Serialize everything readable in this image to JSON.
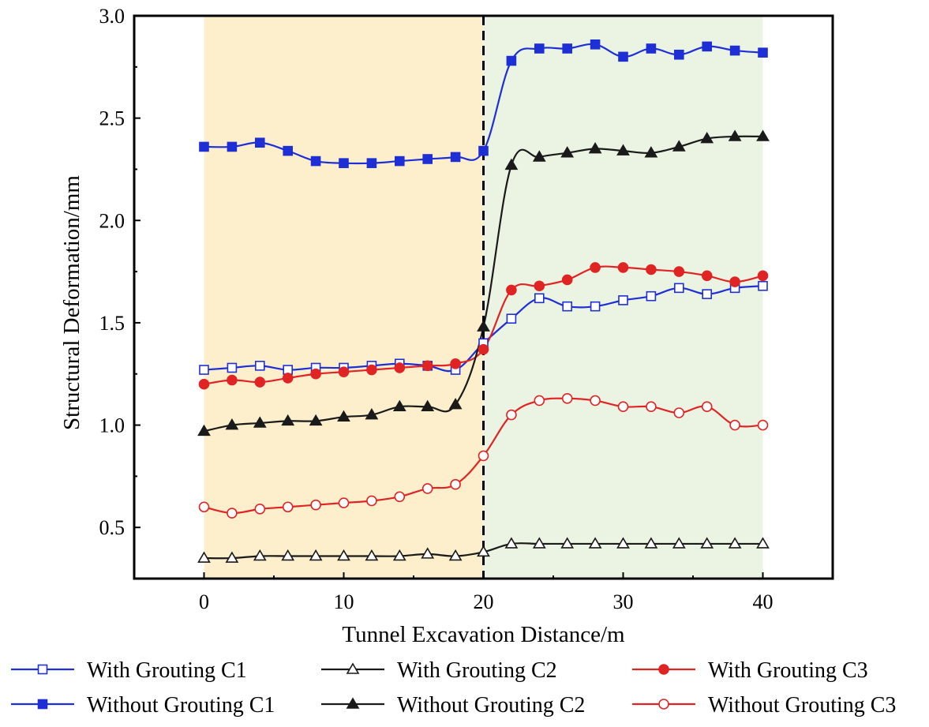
{
  "chart_data": {
    "type": "line",
    "xlabel": "Tunnel Excavation Distance/m",
    "ylabel": "Structural Deformation/mm",
    "xlim": [
      -5,
      45
    ],
    "ylim": [
      0.25,
      3.0
    ],
    "xticks": [
      0,
      10,
      20,
      30,
      40
    ],
    "yticks": [
      0.5,
      1.0,
      1.5,
      2.0,
      2.5,
      3.0
    ],
    "xtick_labels": [
      "0",
      "10",
      "20",
      "30",
      "40"
    ],
    "ytick_labels": [
      "0.5",
      "1.0",
      "1.5",
      "2.0",
      "2.5",
      "3.0"
    ],
    "grid": false,
    "legend_position": "bottom",
    "shaded_regions": [
      {
        "x_from": 0,
        "x_to": 20,
        "color": "#fdefcc"
      },
      {
        "x_from": 20,
        "x_to": 40,
        "color": "#ebf4e3"
      }
    ],
    "vertical_line": {
      "x": 20,
      "style": "dashed",
      "color": "#000000"
    },
    "x": [
      0,
      2,
      4,
      6,
      8,
      10,
      12,
      14,
      16,
      18,
      20,
      22,
      24,
      26,
      28,
      30,
      32,
      34,
      36,
      38,
      40
    ],
    "series": [
      {
        "name": "With Grouting C1",
        "color": "#1f2fd6",
        "marker": "square",
        "filled": false,
        "values": [
          1.27,
          1.28,
          1.29,
          1.27,
          1.28,
          1.28,
          1.29,
          1.3,
          1.29,
          1.27,
          1.4,
          1.52,
          1.62,
          1.58,
          1.58,
          1.61,
          1.63,
          1.67,
          1.64,
          1.67,
          1.68
        ]
      },
      {
        "name": "With Grouting C2",
        "color": "#1a1a1a",
        "marker": "triangle",
        "filled": false,
        "values": [
          0.35,
          0.35,
          0.36,
          0.36,
          0.36,
          0.36,
          0.36,
          0.36,
          0.37,
          0.36,
          0.38,
          0.42,
          0.42,
          0.42,
          0.42,
          0.42,
          0.42,
          0.42,
          0.42,
          0.42,
          0.42
        ]
      },
      {
        "name": "With Grouting C3",
        "color": "#e02424",
        "marker": "circle",
        "filled": true,
        "values": [
          1.2,
          1.22,
          1.21,
          1.23,
          1.25,
          1.26,
          1.27,
          1.28,
          1.29,
          1.3,
          1.37,
          1.66,
          1.68,
          1.71,
          1.77,
          1.77,
          1.76,
          1.75,
          1.73,
          1.7,
          1.73
        ]
      },
      {
        "name": "Without Grouting C1",
        "color": "#1f2fd6",
        "marker": "square",
        "filled": true,
        "values": [
          2.36,
          2.36,
          2.38,
          2.34,
          2.29,
          2.28,
          2.28,
          2.29,
          2.3,
          2.31,
          2.34,
          2.78,
          2.84,
          2.84,
          2.86,
          2.8,
          2.84,
          2.81,
          2.85,
          2.83,
          2.82
        ]
      },
      {
        "name": "Without Grouting C2",
        "color": "#1a1a1a",
        "marker": "triangle",
        "filled": true,
        "values": [
          0.97,
          1.0,
          1.01,
          1.02,
          1.02,
          1.04,
          1.05,
          1.09,
          1.09,
          1.1,
          1.48,
          2.27,
          2.31,
          2.33,
          2.35,
          2.34,
          2.33,
          2.36,
          2.4,
          2.41,
          2.41
        ]
      },
      {
        "name": "Without Grouting C3",
        "color": "#e02424",
        "marker": "circle",
        "filled": false,
        "values": [
          0.6,
          0.57,
          0.59,
          0.6,
          0.61,
          0.62,
          0.63,
          0.65,
          0.69,
          0.71,
          0.85,
          1.05,
          1.12,
          1.13,
          1.12,
          1.09,
          1.09,
          1.06,
          1.09,
          1.0,
          1.0
        ]
      }
    ]
  }
}
